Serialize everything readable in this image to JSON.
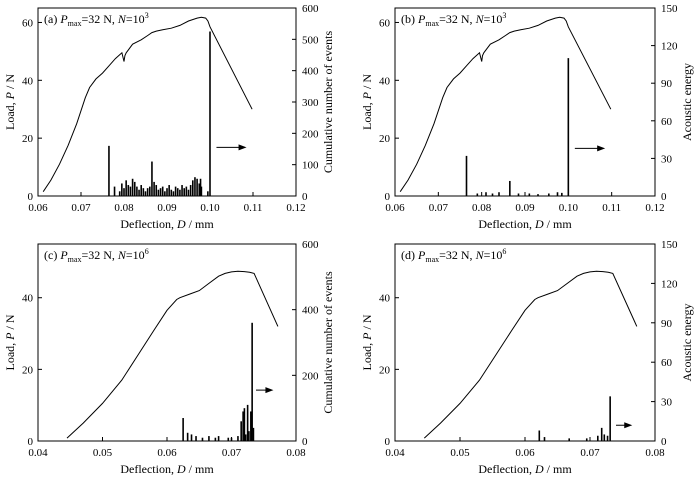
{
  "chart_data": [
    {
      "type": "line+bar",
      "panel_label": "(a)",
      "annotation": {
        "p_label": "P",
        "p_sub": "max",
        "p_value": "=32 N, ",
        "n_label": "N",
        "n_value": "=10",
        "n_exp": "3"
      },
      "xlabel": {
        "name": "Deflection, ",
        "sym": "D",
        "unit": " / mm"
      },
      "ylabel_left": {
        "name": "Load, ",
        "sym": "P",
        "unit": " / N"
      },
      "ylabel_right": "Cumulative number of events",
      "xlim": [
        0.06,
        0.12
      ],
      "ylim_left": [
        0,
        65
      ],
      "ylim_right": [
        0,
        600
      ],
      "xticks": [
        "0.06",
        "0.07",
        "0.08",
        "0.09",
        "0.10",
        "0.11",
        "0.12"
      ],
      "yticks_left": [
        "0",
        "20",
        "40",
        "60"
      ],
      "yticks_right": [
        "0",
        "100",
        "200",
        "300",
        "400",
        "500",
        "600"
      ],
      "arrow": {
        "x0": 0.1015,
        "x1": 0.1085,
        "y_right": 155
      },
      "load_curve": {
        "x": [
          0.0612,
          0.063,
          0.065,
          0.067,
          0.069,
          0.071,
          0.072,
          0.0735,
          0.075,
          0.0765,
          0.078,
          0.0795,
          0.08,
          0.0802,
          0.0805,
          0.082,
          0.084,
          0.0855,
          0.0865,
          0.0875,
          0.089,
          0.091,
          0.093,
          0.095,
          0.097,
          0.098,
          0.099,
          0.0995,
          0.1,
          0.1098
        ],
        "y": [
          1.5,
          5.5,
          11,
          17.5,
          25,
          34,
          37.5,
          40.5,
          42.5,
          45,
          47.5,
          49.5,
          46.5,
          48.5,
          49.5,
          52.5,
          54,
          55.5,
          56.5,
          57,
          57.5,
          58,
          59,
          60.5,
          61.5,
          61.8,
          61.5,
          60.5,
          58.5,
          30
        ]
      },
      "events": {
        "x": [
          0.0765,
          0.0778,
          0.079,
          0.0795,
          0.08,
          0.0805,
          0.081,
          0.0815,
          0.082,
          0.0825,
          0.083,
          0.0835,
          0.084,
          0.0845,
          0.085,
          0.0855,
          0.086,
          0.0865,
          0.087,
          0.0875,
          0.088,
          0.0885,
          0.089,
          0.0895,
          0.09,
          0.0905,
          0.091,
          0.0915,
          0.092,
          0.0925,
          0.093,
          0.0935,
          0.094,
          0.0945,
          0.095,
          0.0955,
          0.096,
          0.0965,
          0.097,
          0.0975,
          0.0978,
          0.098,
          0.0995,
          0.1
        ],
        "y": [
          160,
          30,
          15,
          40,
          25,
          50,
          35,
          30,
          55,
          45,
          30,
          20,
          35,
          25,
          15,
          25,
          30,
          110,
          45,
          35,
          20,
          25,
          30,
          15,
          25,
          35,
          20,
          15,
          30,
          25,
          20,
          35,
          25,
          30,
          20,
          35,
          50,
          60,
          55,
          40,
          55,
          30,
          15,
          525
        ]
      }
    },
    {
      "type": "line+bar",
      "panel_label": "(b)",
      "annotation": {
        "p_label": "P",
        "p_sub": "max",
        "p_value": "=32 N, ",
        "n_label": "N",
        "n_value": "=10",
        "n_exp": "3"
      },
      "xlabel": {
        "name": "Deflection, ",
        "sym": "D",
        "unit": " / mm"
      },
      "ylabel_left": {
        "name": "Load, ",
        "sym": "P",
        "unit": " / N"
      },
      "ylabel_right": "Acoustic energy",
      "xlim": [
        0.06,
        0.12
      ],
      "ylim_left": [
        0,
        65
      ],
      "ylim_right": [
        0,
        150
      ],
      "xticks": [
        "0.06",
        "0.07",
        "0.08",
        "0.09",
        "0.10",
        "0.11",
        "0.12"
      ],
      "yticks_left": [
        "0",
        "20",
        "40",
        "60"
      ],
      "yticks_right": [
        "0",
        "30",
        "60",
        "90",
        "120",
        "150"
      ],
      "arrow": {
        "x0": 0.1015,
        "x1": 0.1085,
        "y_right": 38
      },
      "load_curve": {
        "x": [
          0.0612,
          0.063,
          0.065,
          0.067,
          0.069,
          0.071,
          0.072,
          0.0735,
          0.075,
          0.0765,
          0.078,
          0.0795,
          0.08,
          0.0802,
          0.0805,
          0.082,
          0.084,
          0.0855,
          0.0865,
          0.0875,
          0.089,
          0.091,
          0.093,
          0.095,
          0.097,
          0.098,
          0.099,
          0.0995,
          0.1,
          0.1098
        ],
        "y": [
          1.5,
          5.5,
          11,
          17.5,
          25,
          34,
          37.5,
          40.5,
          42.5,
          45,
          47.5,
          49.5,
          46.5,
          48.5,
          49.5,
          52.5,
          54,
          55.5,
          56.5,
          57,
          57.5,
          58,
          59,
          60.5,
          61.5,
          61.8,
          61.5,
          60.5,
          58.5,
          30
        ]
      },
      "events": {
        "x": [
          0.0765,
          0.079,
          0.081,
          0.0825,
          0.084,
          0.0865,
          0.0885,
          0.091,
          0.093,
          0.0955,
          0.0975,
          0.0985,
          0.1
        ],
        "y": [
          32,
          2,
          3,
          2,
          3,
          12,
          2,
          2,
          1.5,
          2,
          3,
          2.5,
          110
        ]
      }
    },
    {
      "type": "line+bar",
      "panel_label": "(c)",
      "annotation": {
        "p_label": "P",
        "p_sub": "max",
        "p_value": "=32 N, ",
        "n_label": "N",
        "n_value": "=10",
        "n_exp": "6"
      },
      "xlabel": {
        "name": "Deflection, ",
        "sym": "D",
        "unit": " / mm"
      },
      "ylabel_left": {
        "name": "Load, ",
        "sym": "P",
        "unit": " / N"
      },
      "ylabel_right": "Cumulative number of events",
      "xlim": [
        0.04,
        0.08
      ],
      "ylim_left": [
        0,
        55
      ],
      "ylim_right": [
        0,
        600
      ],
      "xticks": [
        "0.04",
        "0.05",
        "0.06",
        "0.07",
        "0.08"
      ],
      "yticks_left": [
        "0",
        "20",
        "40"
      ],
      "yticks_right": [
        "0",
        "200",
        "400",
        "600"
      ],
      "arrow": {
        "x0": 0.0738,
        "x1": 0.0765,
        "y_right": 155
      },
      "load_curve": {
        "x": [
          0.0445,
          0.047,
          0.05,
          0.053,
          0.0555,
          0.058,
          0.06,
          0.0615,
          0.062,
          0.0635,
          0.065,
          0.0665,
          0.068,
          0.069,
          0.07,
          0.071,
          0.072,
          0.0728,
          0.0735,
          0.0772
        ],
        "y": [
          0.8,
          5,
          10.5,
          17,
          24,
          31,
          36.5,
          39.5,
          40,
          41,
          42,
          44,
          46,
          46.8,
          47.2,
          47.4,
          47.3,
          47.1,
          46.8,
          32
        ]
      },
      "events": {
        "x": [
          0.0625,
          0.0632,
          0.0638,
          0.0645,
          0.0655,
          0.0665,
          0.0675,
          0.068,
          0.0695,
          0.07,
          0.071,
          0.0715,
          0.0718,
          0.072,
          0.0722,
          0.0725,
          0.0727,
          0.073,
          0.0732,
          0.0734
        ],
        "y": [
          70,
          25,
          20,
          15,
          10,
          15,
          10,
          15,
          10,
          10,
          15,
          60,
          90,
          100,
          20,
          110,
          30,
          90,
          360,
          40
        ]
      }
    },
    {
      "type": "line+bar",
      "panel_label": "(d)",
      "annotation": {
        "p_label": "P",
        "p_sub": "max",
        "p_value": "=32 N, ",
        "n_label": "N",
        "n_value": "=10",
        "n_exp": "6"
      },
      "xlabel": {
        "name": "Deflection, ",
        "sym": "D",
        "unit": " / mm"
      },
      "ylabel_left": {
        "name": "Load, ",
        "sym": "P",
        "unit": " / N"
      },
      "ylabel_right": "Acoustic energy",
      "xlim": [
        0.04,
        0.08
      ],
      "ylim_left": [
        0,
        55
      ],
      "ylim_right": [
        0,
        150
      ],
      "xticks": [
        "0.04",
        "0.05",
        "0.06",
        "0.07",
        "0.08"
      ],
      "yticks_left": [
        "0",
        "20",
        "40"
      ],
      "yticks_right": [
        "0",
        "30",
        "60",
        "90",
        "120",
        "150"
      ],
      "arrow": {
        "x0": 0.074,
        "x1": 0.0765,
        "y_right": 12
      },
      "load_curve": {
        "x": [
          0.0445,
          0.047,
          0.05,
          0.053,
          0.0555,
          0.058,
          0.06,
          0.0615,
          0.062,
          0.0635,
          0.065,
          0.0665,
          0.068,
          0.069,
          0.07,
          0.071,
          0.072,
          0.0728,
          0.0735,
          0.0772
        ],
        "y": [
          0.8,
          5,
          10.5,
          17,
          24,
          31,
          36.5,
          39.5,
          40,
          41,
          42,
          44,
          46,
          46.8,
          47.2,
          47.4,
          47.3,
          47.1,
          46.8,
          32
        ]
      },
      "events": {
        "x": [
          0.0622,
          0.063,
          0.0668,
          0.0695,
          0.0712,
          0.0718,
          0.0722,
          0.0727,
          0.0731
        ],
        "y": [
          8,
          3,
          2,
          2,
          4,
          10,
          5,
          4,
          34
        ]
      }
    }
  ]
}
